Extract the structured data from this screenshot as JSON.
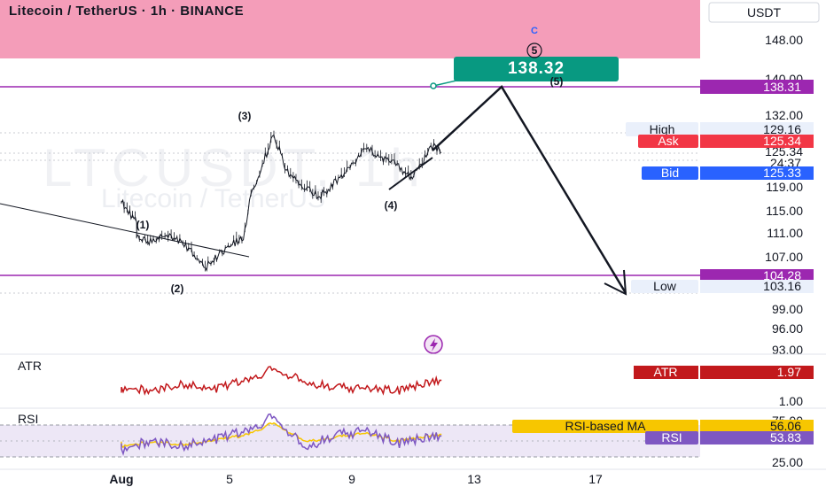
{
  "header": {
    "title": "Litecoin / TetherUS · 1h · BINANCE",
    "currency": "USDT",
    "watermark_symbol": "LTCUSDT, 1h",
    "watermark_name": "Litecoin / TetherUS"
  },
  "colors": {
    "up_zone": "#f49db9",
    "level_line": "#9c27b0",
    "callout": "#089981",
    "ask": "#f23645",
    "bid": "#2962ff",
    "atr": "#c2191c",
    "rsi": "#7e57c2",
    "rsi_ma": "#f7c600",
    "rsi_band": "#ede7f6"
  },
  "price_axis": {
    "ticks": [
      "148.00",
      "140.00",
      "132.00",
      "125.34",
      "119.00",
      "115.00",
      "111.00",
      "107.00",
      "99.00",
      "96.00",
      "93.00"
    ]
  },
  "tags": {
    "high_label": "High",
    "high_value": "129.16",
    "ask_label": "Ask",
    "ask_value": "125.34",
    "countdown": "24:37",
    "bid_label": "Bid",
    "bid_value": "125.33",
    "low_label": "Low",
    "low_value": "103.16",
    "level_top": "138.31",
    "level_bottom": "104.28",
    "callout": "138.32",
    "atr_label": "ATR",
    "atr_value": "1.97",
    "rsi_ma_label": "RSI-based MA",
    "rsi_ma_value": "56.06",
    "rsi_label": "RSI",
    "rsi_value": "53.83"
  },
  "indicator_axis": {
    "atr_tick": "1.00",
    "rsi_top": "75.00",
    "rsi_bottom": "25.00"
  },
  "pane_labels": {
    "atr": "ATR",
    "rsi": "RSI"
  },
  "waves": {
    "w1": "(1)",
    "w2": "(2)",
    "w3": "(3)",
    "w4": "(4)",
    "w5": "(5)",
    "c": "C",
    "circled5": "5"
  },
  "time_axis": [
    "Aug",
    "5",
    "9",
    "13",
    "17"
  ],
  "chart_data": {
    "type": "line",
    "symbol": "LTCUSDT",
    "exchange": "BINANCE",
    "interval": "1h",
    "price_path": {
      "x": [
        "Jul 31 00:00",
        "Jul 31 12:00",
        "Aug 1 12:00",
        "Aug 2 00:00",
        "Aug 2 09:00",
        "Aug 2 14:00",
        "Aug 3 06:00",
        "Aug 3 18:00",
        "Aug 4 12:00",
        "Aug 5 00:00",
        "Aug 5 06:00",
        "Aug 6 00:00",
        "Aug 6 12:00",
        "Aug 7 12:00",
        "Aug 8 12:00",
        "Aug 9 00:00",
        "Aug 9 12:00",
        "Aug 10 00:00",
        "Aug 10 12:00",
        "Aug 11 00:00",
        "Aug 11 06:00",
        "Aug 11 12:00"
      ],
      "y": [
        116.5,
        113.0,
        110.5,
        109.5,
        110.5,
        111.0,
        108.5,
        105.5,
        109.0,
        110.0,
        118.0,
        128.5,
        121.0,
        117.5,
        122.5,
        126.0,
        124.5,
        123.0,
        121.0,
        124.5,
        127.0,
        125.3
      ]
    },
    "projection": {
      "x": [
        "Aug 11 12:00",
        "Aug 13 12:00",
        "Aug 16 12:00"
      ],
      "y": [
        125.3,
        138.3,
        100.5
      ]
    },
    "trendlines": [
      {
        "from": [
          "Jul 31 00:00",
          116.5
        ],
        "to": [
          "Aug 4 00:00",
          108.5
        ]
      },
      {
        "from": [
          "Aug 10 12:00",
          121.0
        ],
        "to": [
          "Aug 11 12:00",
          126.5
        ]
      }
    ],
    "levels": [
      138.31,
      104.28
    ],
    "ylim": [
      91.5,
      152.0
    ],
    "atr": {
      "ylim": [
        0.6,
        3.2
      ],
      "x": [
        "Jul 31",
        "Aug 1",
        "Aug 2",
        "Aug 3",
        "Aug 4",
        "Aug 5",
        "Aug 6",
        "Aug 7",
        "Aug 8",
        "Aug 9",
        "Aug 10",
        "Aug 11 12:00"
      ],
      "values": [
        1.3,
        1.6,
        1.4,
        1.8,
        1.5,
        1.9,
        2.6,
        1.9,
        1.6,
        1.5,
        1.4,
        1.97
      ]
    },
    "rsi": {
      "ylim": [
        15,
        85
      ],
      "band": [
        30,
        70
      ],
      "x": [
        "Jul 31",
        "Aug 1",
        "Aug 2",
        "Aug 3",
        "Aug 4",
        "Aug 5",
        "Aug 6",
        "Aug 7",
        "Aug 8",
        "Aug 9",
        "Aug 10",
        "Aug 11 12:00"
      ],
      "rsi": [
        45,
        38,
        48,
        42,
        50,
        58,
        78,
        40,
        55,
        60,
        45,
        53.83
      ],
      "rsi_ma": [
        47,
        42,
        46,
        44,
        48,
        54,
        70,
        48,
        52,
        57,
        48,
        56.06
      ]
    }
  }
}
